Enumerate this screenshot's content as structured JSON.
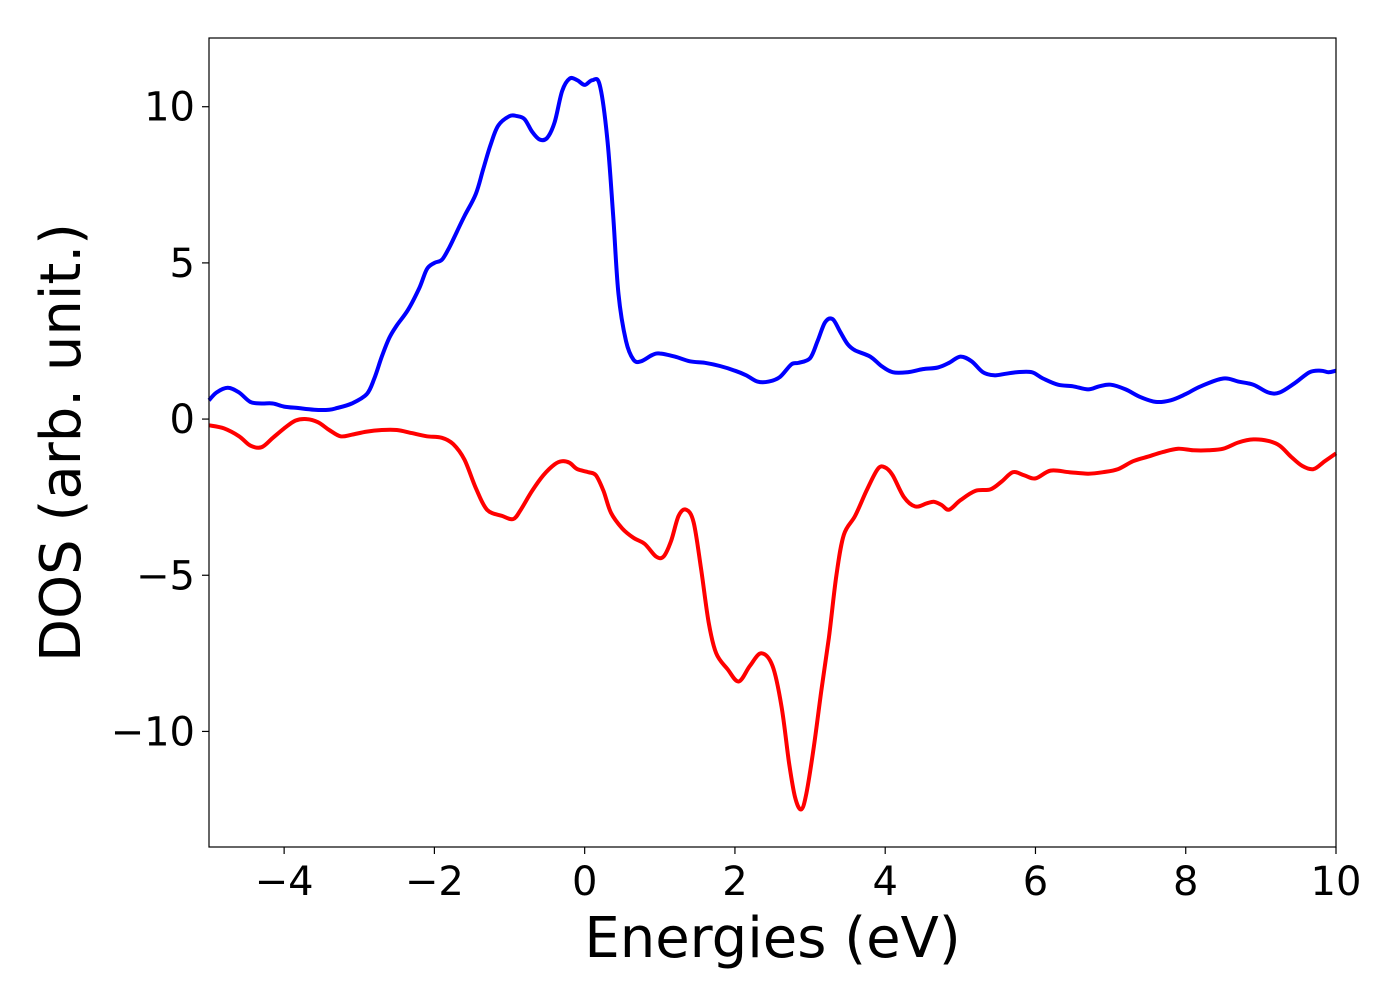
{
  "chart_data": {
    "type": "line",
    "title": "",
    "xlabel": "Energies (eV)",
    "ylabel": "DOS (arb. unit.)",
    "xlim": [
      -5,
      10
    ],
    "ylim": [
      -13.7,
      12.2
    ],
    "x_ticks": [
      -4,
      -2,
      0,
      2,
      4,
      6,
      8,
      10
    ],
    "y_ticks": [
      -10,
      -5,
      0,
      5,
      10
    ],
    "x_tick_labels": [
      "−4",
      "−2",
      "0",
      "2",
      "4",
      "6",
      "8",
      "10"
    ],
    "y_tick_labels": [
      "−10",
      "−5",
      "0",
      "5",
      "10"
    ],
    "grid": false,
    "series": [
      {
        "color": "#0000ff",
        "points": [
          [
            -5.0,
            0.6
          ],
          [
            -4.9,
            0.85
          ],
          [
            -4.75,
            1.0
          ],
          [
            -4.6,
            0.85
          ],
          [
            -4.45,
            0.55
          ],
          [
            -4.3,
            0.5
          ],
          [
            -4.15,
            0.5
          ],
          [
            -4.0,
            0.4
          ],
          [
            -3.8,
            0.35
          ],
          [
            -3.6,
            0.3
          ],
          [
            -3.4,
            0.3
          ],
          [
            -3.3,
            0.35
          ],
          [
            -3.1,
            0.5
          ],
          [
            -2.9,
            0.8
          ],
          [
            -2.8,
            1.3
          ],
          [
            -2.7,
            2.0
          ],
          [
            -2.6,
            2.6
          ],
          [
            -2.5,
            3.0
          ],
          [
            -2.35,
            3.5
          ],
          [
            -2.2,
            4.2
          ],
          [
            -2.1,
            4.8
          ],
          [
            -2.0,
            5.0
          ],
          [
            -1.9,
            5.1
          ],
          [
            -1.8,
            5.5
          ],
          [
            -1.7,
            6.0
          ],
          [
            -1.6,
            6.5
          ],
          [
            -1.45,
            7.2
          ],
          [
            -1.35,
            8.0
          ],
          [
            -1.25,
            8.8
          ],
          [
            -1.15,
            9.4
          ],
          [
            -1.0,
            9.7
          ],
          [
            -0.9,
            9.7
          ],
          [
            -0.8,
            9.6
          ],
          [
            -0.7,
            9.2
          ],
          [
            -0.6,
            8.95
          ],
          [
            -0.5,
            9.0
          ],
          [
            -0.4,
            9.5
          ],
          [
            -0.3,
            10.5
          ],
          [
            -0.2,
            10.9
          ],
          [
            -0.1,
            10.85
          ],
          [
            0.0,
            10.7
          ],
          [
            0.1,
            10.85
          ],
          [
            0.2,
            10.7
          ],
          [
            0.3,
            9.0
          ],
          [
            0.38,
            6.5
          ],
          [
            0.45,
            4.0
          ],
          [
            0.55,
            2.5
          ],
          [
            0.65,
            1.9
          ],
          [
            0.75,
            1.85
          ],
          [
            0.9,
            2.05
          ],
          [
            1.0,
            2.1
          ],
          [
            1.2,
            2.0
          ],
          [
            1.4,
            1.85
          ],
          [
            1.6,
            1.8
          ],
          [
            1.8,
            1.7
          ],
          [
            2.0,
            1.55
          ],
          [
            2.15,
            1.4
          ],
          [
            2.3,
            1.2
          ],
          [
            2.45,
            1.2
          ],
          [
            2.6,
            1.35
          ],
          [
            2.75,
            1.75
          ],
          [
            2.85,
            1.8
          ],
          [
            3.0,
            1.95
          ],
          [
            3.1,
            2.5
          ],
          [
            3.2,
            3.1
          ],
          [
            3.3,
            3.2
          ],
          [
            3.4,
            2.8
          ],
          [
            3.5,
            2.4
          ],
          [
            3.6,
            2.2
          ],
          [
            3.8,
            2.0
          ],
          [
            3.95,
            1.7
          ],
          [
            4.1,
            1.5
          ],
          [
            4.3,
            1.5
          ],
          [
            4.5,
            1.6
          ],
          [
            4.7,
            1.65
          ],
          [
            4.85,
            1.8
          ],
          [
            5.0,
            2.0
          ],
          [
            5.15,
            1.85
          ],
          [
            5.3,
            1.5
          ],
          [
            5.45,
            1.4
          ],
          [
            5.6,
            1.45
          ],
          [
            5.75,
            1.5
          ],
          [
            5.95,
            1.5
          ],
          [
            6.1,
            1.3
          ],
          [
            6.3,
            1.1
          ],
          [
            6.5,
            1.05
          ],
          [
            6.7,
            0.95
          ],
          [
            6.85,
            1.05
          ],
          [
            7.0,
            1.1
          ],
          [
            7.2,
            0.95
          ],
          [
            7.4,
            0.7
          ],
          [
            7.6,
            0.55
          ],
          [
            7.8,
            0.6
          ],
          [
            8.0,
            0.8
          ],
          [
            8.2,
            1.05
          ],
          [
            8.5,
            1.3
          ],
          [
            8.7,
            1.2
          ],
          [
            8.9,
            1.1
          ],
          [
            9.1,
            0.85
          ],
          [
            9.25,
            0.85
          ],
          [
            9.45,
            1.15
          ],
          [
            9.65,
            1.5
          ],
          [
            9.8,
            1.55
          ],
          [
            9.9,
            1.5
          ],
          [
            10.0,
            1.55
          ]
        ]
      },
      {
        "color": "#ff0000",
        "points": [
          [
            -5.0,
            -0.2
          ],
          [
            -4.8,
            -0.3
          ],
          [
            -4.6,
            -0.55
          ],
          [
            -4.45,
            -0.85
          ],
          [
            -4.3,
            -0.9
          ],
          [
            -4.15,
            -0.6
          ],
          [
            -4.0,
            -0.3
          ],
          [
            -3.85,
            -0.05
          ],
          [
            -3.7,
            0.0
          ],
          [
            -3.55,
            -0.1
          ],
          [
            -3.4,
            -0.35
          ],
          [
            -3.25,
            -0.55
          ],
          [
            -3.1,
            -0.5
          ],
          [
            -2.9,
            -0.4
          ],
          [
            -2.7,
            -0.35
          ],
          [
            -2.5,
            -0.35
          ],
          [
            -2.3,
            -0.45
          ],
          [
            -2.1,
            -0.55
          ],
          [
            -1.9,
            -0.6
          ],
          [
            -1.75,
            -0.8
          ],
          [
            -1.6,
            -1.3
          ],
          [
            -1.45,
            -2.2
          ],
          [
            -1.3,
            -2.9
          ],
          [
            -1.1,
            -3.1
          ],
          [
            -0.95,
            -3.2
          ],
          [
            -0.85,
            -2.9
          ],
          [
            -0.7,
            -2.3
          ],
          [
            -0.55,
            -1.8
          ],
          [
            -0.4,
            -1.45
          ],
          [
            -0.3,
            -1.35
          ],
          [
            -0.2,
            -1.4
          ],
          [
            -0.1,
            -1.6
          ],
          [
            0.05,
            -1.7
          ],
          [
            0.15,
            -1.8
          ],
          [
            0.25,
            -2.3
          ],
          [
            0.35,
            -3.0
          ],
          [
            0.5,
            -3.5
          ],
          [
            0.65,
            -3.8
          ],
          [
            0.8,
            -4.0
          ],
          [
            0.95,
            -4.4
          ],
          [
            1.05,
            -4.4
          ],
          [
            1.15,
            -3.9
          ],
          [
            1.25,
            -3.1
          ],
          [
            1.35,
            -2.9
          ],
          [
            1.45,
            -3.3
          ],
          [
            1.55,
            -4.8
          ],
          [
            1.65,
            -6.5
          ],
          [
            1.75,
            -7.5
          ],
          [
            1.9,
            -8.0
          ],
          [
            2.05,
            -8.4
          ],
          [
            2.2,
            -7.9
          ],
          [
            2.35,
            -7.5
          ],
          [
            2.5,
            -7.9
          ],
          [
            2.62,
            -9.2
          ],
          [
            2.72,
            -11.0
          ],
          [
            2.8,
            -12.1
          ],
          [
            2.88,
            -12.5
          ],
          [
            2.95,
            -12.0
          ],
          [
            3.05,
            -10.5
          ],
          [
            3.15,
            -8.7
          ],
          [
            3.25,
            -7.0
          ],
          [
            3.35,
            -5.0
          ],
          [
            3.45,
            -3.7
          ],
          [
            3.6,
            -3.1
          ],
          [
            3.75,
            -2.3
          ],
          [
            3.9,
            -1.6
          ],
          [
            4.0,
            -1.55
          ],
          [
            4.1,
            -1.8
          ],
          [
            4.25,
            -2.5
          ],
          [
            4.4,
            -2.8
          ],
          [
            4.55,
            -2.7
          ],
          [
            4.65,
            -2.65
          ],
          [
            4.75,
            -2.75
          ],
          [
            4.85,
            -2.9
          ],
          [
            5.0,
            -2.6
          ],
          [
            5.2,
            -2.3
          ],
          [
            5.4,
            -2.25
          ],
          [
            5.55,
            -2.0
          ],
          [
            5.7,
            -1.7
          ],
          [
            5.85,
            -1.8
          ],
          [
            6.0,
            -1.9
          ],
          [
            6.2,
            -1.65
          ],
          [
            6.45,
            -1.7
          ],
          [
            6.7,
            -1.75
          ],
          [
            6.9,
            -1.7
          ],
          [
            7.1,
            -1.6
          ],
          [
            7.3,
            -1.35
          ],
          [
            7.5,
            -1.2
          ],
          [
            7.7,
            -1.05
          ],
          [
            7.9,
            -0.95
          ],
          [
            8.1,
            -1.0
          ],
          [
            8.3,
            -1.0
          ],
          [
            8.5,
            -0.95
          ],
          [
            8.7,
            -0.75
          ],
          [
            8.9,
            -0.65
          ],
          [
            9.1,
            -0.7
          ],
          [
            9.25,
            -0.85
          ],
          [
            9.4,
            -1.2
          ],
          [
            9.55,
            -1.5
          ],
          [
            9.7,
            -1.6
          ],
          [
            9.85,
            -1.35
          ],
          [
            10.0,
            -1.1
          ]
        ]
      }
    ]
  }
}
